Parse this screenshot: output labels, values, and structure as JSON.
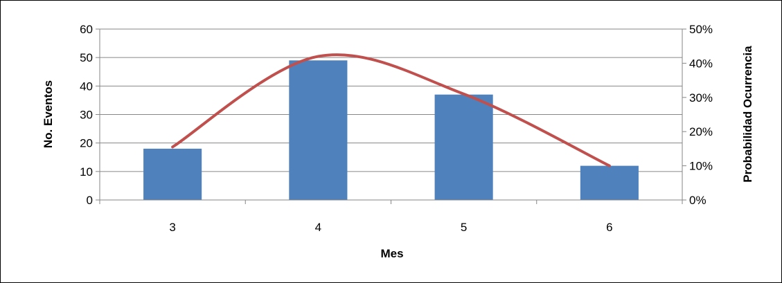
{
  "chart_data": {
    "type": "bar",
    "title": "",
    "xlabel": "Mes",
    "ylabel": "No. Eventos",
    "y2label": "Probabilidad  Ocurrencia",
    "categories": [
      "3",
      "4",
      "5",
      "6"
    ],
    "series": [
      {
        "type": "bar",
        "axis": "left",
        "color": "#4F81BD",
        "values": [
          18,
          49,
          37,
          12
        ]
      },
      {
        "type": "line",
        "axis": "right",
        "smooth": true,
        "color": "#C0504D",
        "values": [
          0.155,
          0.42,
          0.31,
          0.1
        ]
      }
    ],
    "ylim": [
      0,
      60
    ],
    "yticks": [
      "0",
      "10",
      "20",
      "30",
      "40",
      "50",
      "60"
    ],
    "y2lim": [
      0,
      0.5
    ],
    "y2ticks": [
      "0%",
      "10%",
      "20%",
      "30%",
      "40%",
      "50%"
    ],
    "grid": true,
    "legend": "none"
  }
}
